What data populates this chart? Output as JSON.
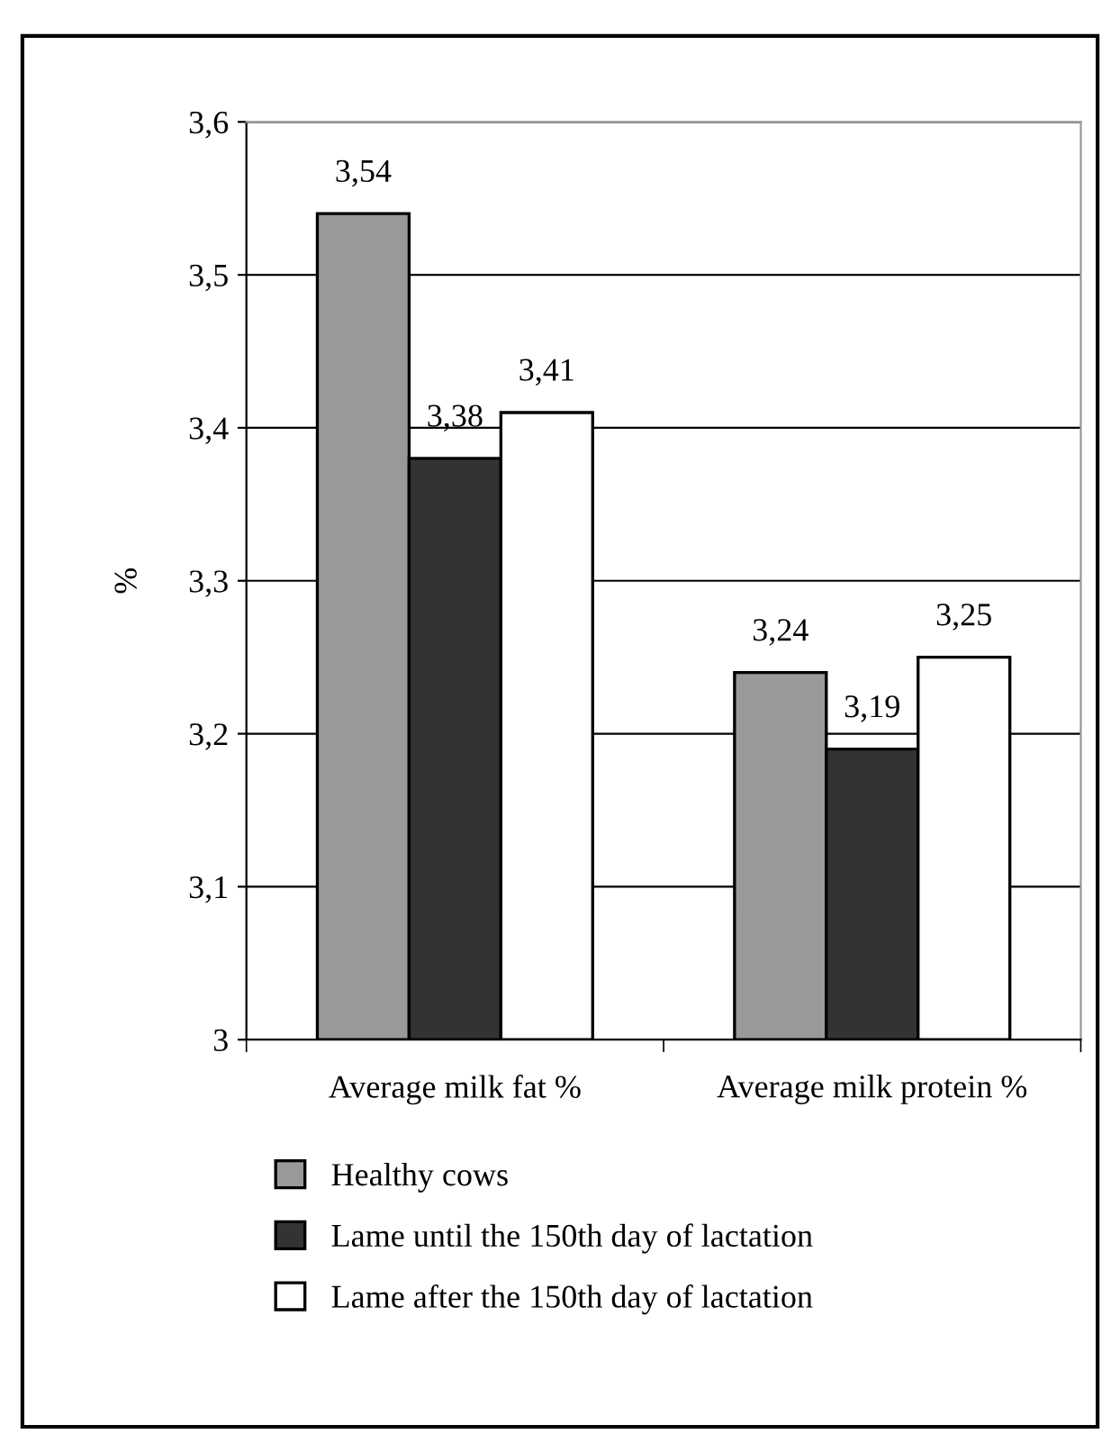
{
  "chart_data": {
    "type": "bar",
    "ylabel": "%",
    "categories": [
      "Average milk fat %",
      "Average milk protein %"
    ],
    "series": [
      {
        "name": "Healthy cows",
        "color": "#999999",
        "values": [
          3.54,
          3.24
        ],
        "value_labels": [
          "3,54",
          "3,24"
        ]
      },
      {
        "name": "Lame until the 150th day of lactation",
        "color": "#333333",
        "values": [
          3.38,
          3.19
        ],
        "value_labels": [
          "3,38",
          "3,19"
        ]
      },
      {
        "name": "Lame after the 150th day of lactation",
        "color": "#ffffff",
        "values": [
          3.41,
          3.25
        ],
        "value_labels": [
          "3,41",
          "3,25"
        ]
      }
    ],
    "ylim": [
      3,
      3.6
    ],
    "yticks": [
      3,
      {
        "value": 3.1,
        "label": "3,1"
      },
      {
        "value": 3.2,
        "label": "3,2"
      },
      {
        "value": 3.3,
        "label": "3,3"
      },
      {
        "value": 3.4,
        "label": "3,4"
      },
      {
        "value": 3.5,
        "label": "3,5"
      },
      {
        "value": 3.6,
        "label": "3,6"
      }
    ],
    "grid": "y",
    "legend": "bottom"
  }
}
